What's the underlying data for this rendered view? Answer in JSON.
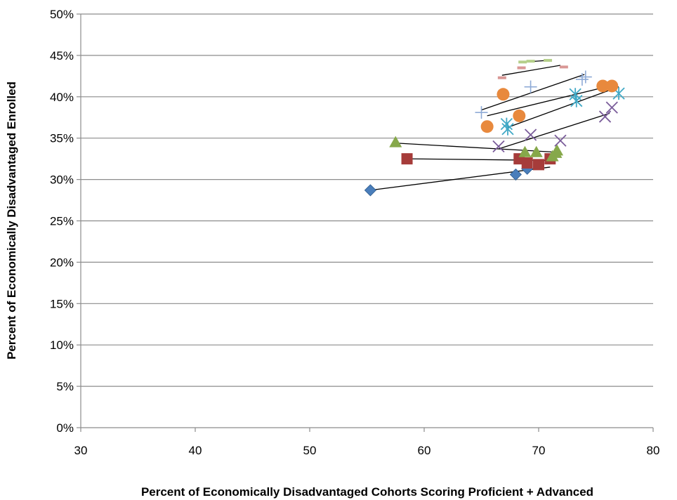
{
  "chart_data": {
    "type": "scatter",
    "title": "",
    "xlabel": "Percent of Economically Disadvantaged Cohorts Scoring Proficient + Advanced",
    "ylabel": "Percent of Economically Disadvantaged Enrolled",
    "xlim": [
      30,
      80
    ],
    "ylim": [
      0,
      0.5
    ],
    "x_ticks": [
      "30",
      "40",
      "50",
      "60",
      "70",
      "80"
    ],
    "y_ticks": [
      "0%",
      "5%",
      "10%",
      "15%",
      "20%",
      "25%",
      "30%",
      "35%",
      "40%",
      "45%",
      "50%"
    ],
    "grid": "horizontal",
    "legend": "none",
    "series": [
      {
        "marker": "diamond",
        "color": "#4a7ebb",
        "points": [
          [
            55.3,
            0.287
          ],
          [
            68.0,
            0.306
          ],
          [
            69.0,
            0.313
          ]
        ],
        "trend": [
          [
            55.3,
            0.287
          ],
          [
            71.0,
            0.315
          ]
        ]
      },
      {
        "marker": "square",
        "color": "#a63c3a",
        "points": [
          [
            58.5,
            0.325
          ],
          [
            68.3,
            0.325
          ],
          [
            69.0,
            0.32
          ],
          [
            70.0,
            0.318
          ],
          [
            71.0,
            0.325
          ]
        ],
        "trend": [
          [
            58.5,
            0.325
          ],
          [
            71.5,
            0.323
          ]
        ]
      },
      {
        "marker": "triangle",
        "color": "#86a84a",
        "points": [
          [
            57.5,
            0.345
          ],
          [
            68.8,
            0.333
          ],
          [
            69.8,
            0.333
          ],
          [
            71.2,
            0.328
          ],
          [
            71.5,
            0.332
          ],
          [
            71.6,
            0.335
          ]
        ],
        "trend": [
          [
            57.5,
            0.344
          ],
          [
            71.6,
            0.333
          ]
        ]
      },
      {
        "marker": "x",
        "color": "#7a5c9a",
        "points": [
          [
            66.5,
            0.34
          ],
          [
            69.3,
            0.354
          ],
          [
            71.9,
            0.347
          ],
          [
            75.8,
            0.376
          ],
          [
            76.4,
            0.387
          ]
        ],
        "trend": [
          [
            66.5,
            0.337
          ],
          [
            76.2,
            0.38
          ]
        ]
      },
      {
        "marker": "asterisk",
        "color": "#41a9c6",
        "points": [
          [
            67.2,
            0.367
          ],
          [
            67.3,
            0.361
          ],
          [
            73.2,
            0.403
          ],
          [
            73.3,
            0.395
          ],
          [
            77.0,
            0.404
          ]
        ],
        "trend": [
          [
            67.3,
            0.363
          ],
          [
            77.0,
            0.412
          ]
        ]
      },
      {
        "marker": "circle",
        "color": "#e8893d",
        "points": [
          [
            65.5,
            0.364
          ],
          [
            66.9,
            0.403
          ],
          [
            68.3,
            0.377
          ],
          [
            75.6,
            0.413
          ],
          [
            76.4,
            0.413
          ]
        ],
        "trend": [
          [
            65.5,
            0.377
          ],
          [
            76.5,
            0.414
          ]
        ]
      },
      {
        "marker": "plus",
        "color": "#8eaad6",
        "points": [
          [
            65.0,
            0.381
          ],
          [
            69.3,
            0.412
          ],
          [
            73.8,
            0.421
          ],
          [
            74.1,
            0.424
          ]
        ],
        "trend": [
          [
            65.0,
            0.384
          ],
          [
            74.0,
            0.427
          ]
        ]
      },
      {
        "marker": "dash",
        "color": "#d99795",
        "points": [
          [
            66.8,
            0.423
          ],
          [
            68.5,
            0.435
          ],
          [
            72.2,
            0.436
          ]
        ],
        "trend": [
          [
            66.8,
            0.426
          ],
          [
            71.9,
            0.438
          ]
        ]
      },
      {
        "marker": "dash",
        "color": "#b5cf8a",
        "points": [
          [
            68.6,
            0.442
          ],
          [
            69.3,
            0.443
          ],
          [
            70.8,
            0.444
          ]
        ],
        "trend": [
          [
            68.8,
            0.442
          ],
          [
            70.8,
            0.444
          ]
        ]
      }
    ]
  }
}
